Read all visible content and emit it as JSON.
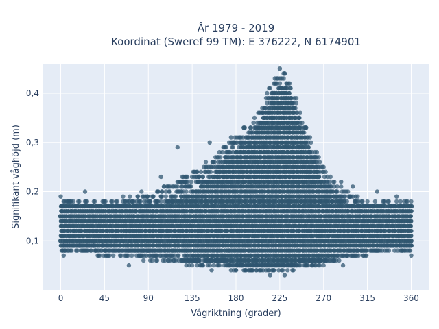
{
  "chart_data": {
    "type": "scatter",
    "title_lines": [
      "År 1979 - 2019",
      "Koordinat (Sweref 99 TM): E 376222, N 6174901"
    ],
    "xlabel": "Vågriktning (grader)",
    "ylabel": "Signifikant våghöjd (m)",
    "xlim": [
      -18,
      378
    ],
    "ylim": [
      0.0,
      0.46
    ],
    "x_ticks": [
      0,
      45,
      90,
      135,
      180,
      225,
      270,
      315,
      360
    ],
    "x_tick_labels": [
      "0",
      "45",
      "90",
      "135",
      "180",
      "225",
      "270",
      "315",
      "360"
    ],
    "y_ticks": [
      0.1,
      0.2,
      0.3,
      0.4
    ],
    "y_tick_labels": [
      "0,1",
      "0,2",
      "0,3",
      "0,4"
    ],
    "grid": true,
    "marker_color": "#2f5670",
    "plot_background": "#e5ecf6",
    "envelope": {
      "x": [
        0,
        20,
        45,
        70,
        90,
        110,
        135,
        150,
        165,
        180,
        195,
        205,
        210,
        215,
        220,
        225,
        230,
        235,
        240,
        245,
        250,
        260,
        270,
        285,
        300,
        315,
        330,
        345,
        360
      ],
      "y_min": [
        0.08,
        0.08,
        0.07,
        0.07,
        0.06,
        0.06,
        0.05,
        0.05,
        0.05,
        0.04,
        0.04,
        0.04,
        0.04,
        0.04,
        0.04,
        0.04,
        0.04,
        0.04,
        0.04,
        0.05,
        0.05,
        0.05,
        0.05,
        0.06,
        0.07,
        0.07,
        0.08,
        0.08,
        0.08
      ],
      "y_max": [
        0.18,
        0.18,
        0.18,
        0.19,
        0.2,
        0.21,
        0.24,
        0.26,
        0.29,
        0.31,
        0.34,
        0.37,
        0.39,
        0.41,
        0.43,
        0.44,
        0.44,
        0.43,
        0.4,
        0.37,
        0.34,
        0.29,
        0.25,
        0.21,
        0.19,
        0.18,
        0.18,
        0.18,
        0.18
      ],
      "dense_max": [
        0.17,
        0.17,
        0.17,
        0.17,
        0.17,
        0.18,
        0.2,
        0.22,
        0.25,
        0.28,
        0.31,
        0.34,
        0.36,
        0.38,
        0.4,
        0.41,
        0.41,
        0.4,
        0.37,
        0.34,
        0.31,
        0.26,
        0.22,
        0.19,
        0.17,
        0.17,
        0.17,
        0.17,
        0.17
      ],
      "dense_min": [
        0.09,
        0.09,
        0.09,
        0.08,
        0.08,
        0.07,
        0.07,
        0.06,
        0.06,
        0.05,
        0.05,
        0.05,
        0.05,
        0.05,
        0.05,
        0.05,
        0.05,
        0.05,
        0.05,
        0.06,
        0.06,
        0.06,
        0.06,
        0.07,
        0.08,
        0.08,
        0.09,
        0.09,
        0.09
      ]
    },
    "notable_points": [
      {
        "x": 0,
        "y": 0.19
      },
      {
        "x": 25,
        "y": 0.2
      },
      {
        "x": 3,
        "y": 0.07
      },
      {
        "x": 70,
        "y": 0.05
      },
      {
        "x": 103,
        "y": 0.23
      },
      {
        "x": 120,
        "y": 0.29
      },
      {
        "x": 153,
        "y": 0.3
      },
      {
        "x": 175,
        "y": 0.31
      },
      {
        "x": 188,
        "y": 0.33
      },
      {
        "x": 225,
        "y": 0.45
      },
      {
        "x": 215,
        "y": 0.03
      },
      {
        "x": 230,
        "y": 0.03
      },
      {
        "x": 288,
        "y": 0.22
      },
      {
        "x": 300,
        "y": 0.21
      },
      {
        "x": 325,
        "y": 0.2
      },
      {
        "x": 360,
        "y": 0.07
      },
      {
        "x": 345,
        "y": 0.19
      },
      {
        "x": 155,
        "y": 0.04
      },
      {
        "x": 290,
        "y": 0.05
      }
    ]
  }
}
